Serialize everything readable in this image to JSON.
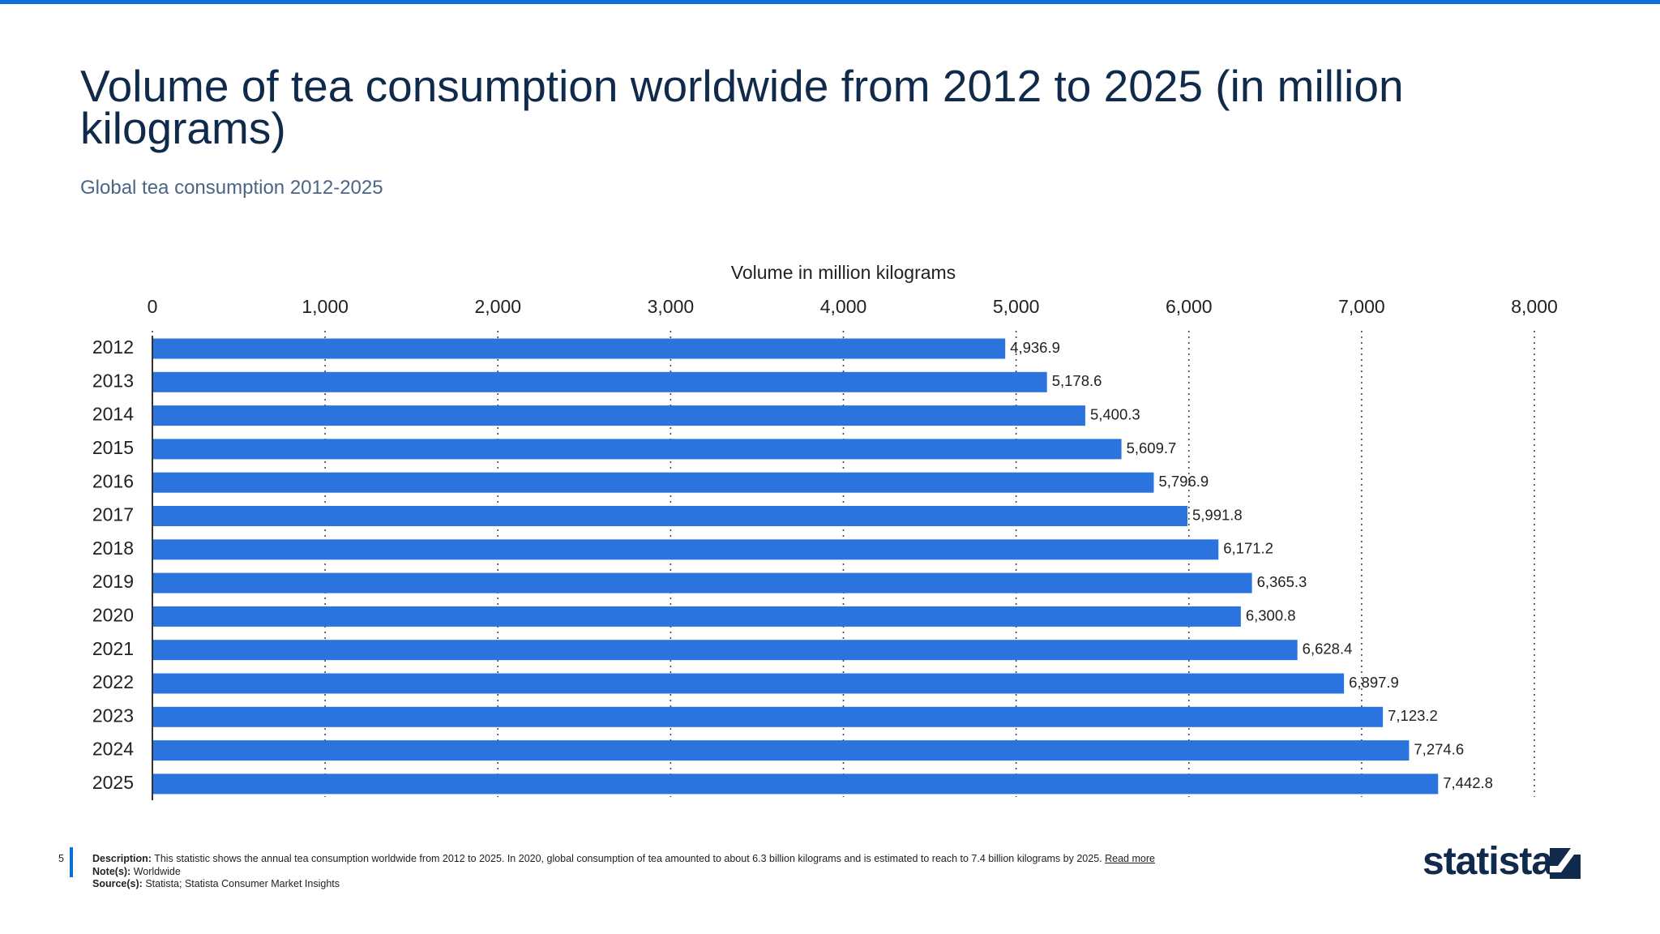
{
  "chart_data": {
    "type": "bar",
    "orientation": "horizontal",
    "title": "Volume of tea consumption worldwide from 2012 to 2025 (in million kilograms)",
    "subtitle": "Global tea consumption 2012-2025",
    "x_label": "Volume in million kilograms",
    "categories": [
      "2012",
      "2013",
      "2014",
      "2015",
      "2016",
      "2017",
      "2018",
      "2019",
      "2020",
      "2021",
      "2022",
      "2023",
      "2024",
      "2025"
    ],
    "values": [
      4936.9,
      5178.6,
      5400.3,
      5609.7,
      5796.9,
      5991.8,
      6171.2,
      6365.3,
      6300.8,
      6628.4,
      6897.9,
      7123.2,
      7274.6,
      7442.8
    ],
    "value_labels": [
      "4,936.9",
      "5,178.6",
      "5,400.3",
      "5,609.7",
      "5,796.9",
      "5,991.8",
      "6,171.2",
      "6,365.3",
      "6,300.8",
      "6,628.4",
      "6,897.9",
      "7,123.2",
      "7,274.6",
      "7,442.8"
    ],
    "color": "#2b74dd",
    "xlim": [
      0,
      8000
    ],
    "xticks": [
      0,
      {
        "value": 1000,
        "label": "1,000"
      },
      {
        "value": 2000,
        "label": "2,000"
      },
      {
        "value": 3000,
        "label": "3,000"
      },
      {
        "value": 4000,
        "label": "4,000"
      },
      {
        "value": 5000,
        "label": "5,000"
      },
      {
        "value": 6000,
        "label": "6,000"
      },
      {
        "value": 7000,
        "label": "7,000"
      },
      {
        "value": 8000,
        "label": "8,000"
      }
    ],
    "grid": true
  },
  "footer": {
    "page": "5",
    "description_label": "Description:",
    "description": "This statistic shows the annual tea consumption worldwide from 2012 to 2025. In 2020, global consumption of tea amounted to about 6.3 billion kilograms and is estimated to reach to 7.4 billion kilograms by 2025.",
    "read_more": "Read more",
    "notes_label": "Note(s):",
    "notes": "Worldwide",
    "sources_label": "Source(s):",
    "sources": "Statista; Statista Consumer Market Insights",
    "logo": "statista"
  }
}
